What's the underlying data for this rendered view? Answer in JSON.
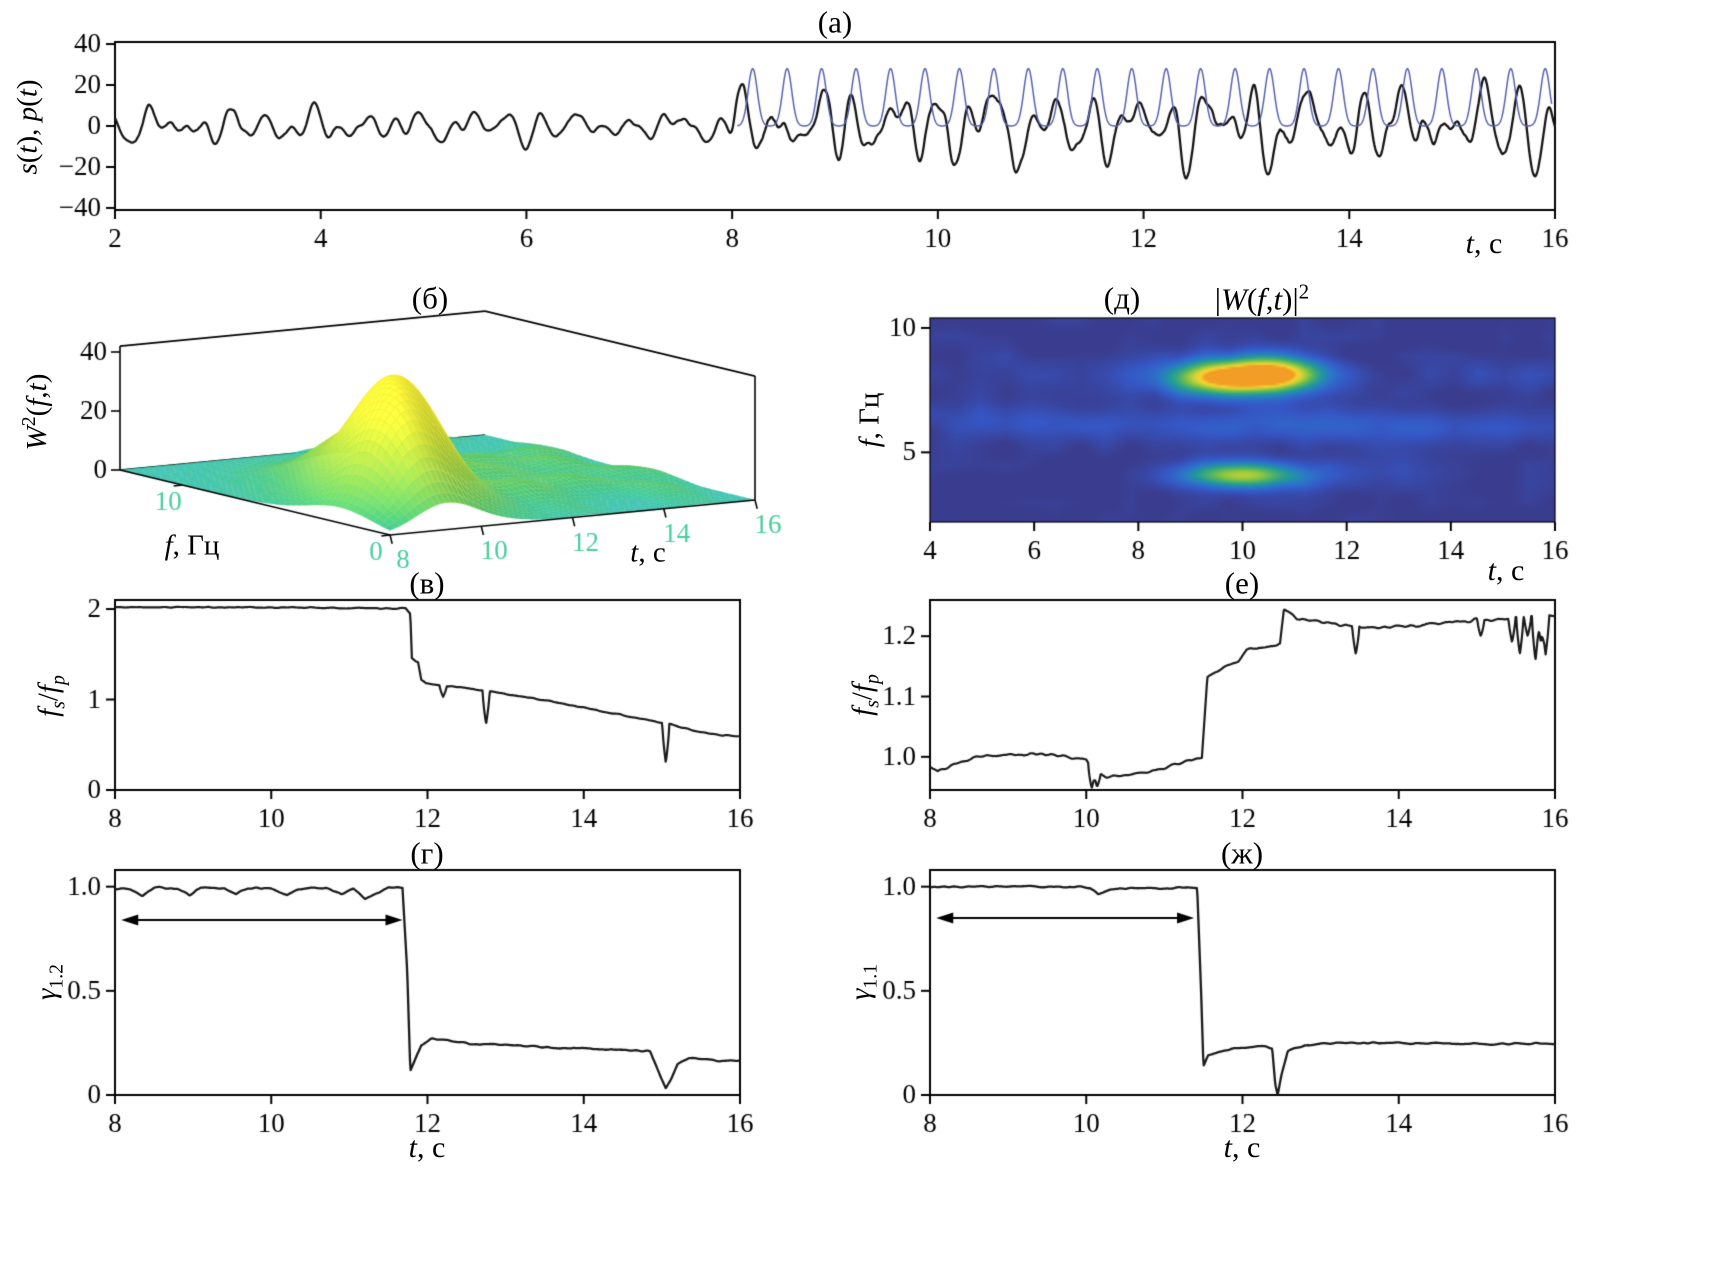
{
  "meta": {
    "background": "#ffffff",
    "axis_color": "#000000"
  },
  "chart_data": [
    {
      "id": "a",
      "type": "line",
      "title": "(а)",
      "ylabel_html": "<i>s</i>(<i>t</i>), <i>p</i>(<i>t</i>)",
      "xlabel_html": "<i>t</i>, с",
      "xlim": [
        2,
        16
      ],
      "ylim": [
        -41,
        41
      ],
      "xtick_vals": [
        2,
        4,
        6,
        8,
        10,
        12,
        14,
        16
      ],
      "xtick_labels": [
        "2",
        "4",
        "6",
        "8",
        "10",
        "12",
        "14",
        "16"
      ],
      "ytick_vals": [
        -40,
        -20,
        0,
        20,
        40
      ],
      "ytick_labels": [
        "−40",
        "−20",
        "0",
        "20",
        "40"
      ],
      "series": [
        {
          "name": "s(t)",
          "color": "#141414",
          "width": 2.3,
          "synth": {
            "kind": "mixed_oscillation",
            "seed": 7,
            "dt": 0.004,
            "segments": [
              {
                "t0": 2,
                "t1": 8,
                "amp": 8.5
              },
              {
                "t0": 8,
                "t1": 16,
                "amp": 22.5
              }
            ],
            "components": [
              {
                "f": 2.3,
                "a": 0.42,
                "pmf": 0.33,
                "pma": 1.6
              },
              {
                "f": 3.6,
                "a": 0.38,
                "pmf": 0.23,
                "pma": 1.3
              },
              {
                "f": 5.0,
                "a": 0.2,
                "pmf": 0.41,
                "pma": 1.0
              },
              {
                "f": 1.25,
                "a": 0.25,
                "pmf": 0.13,
                "pma": 0.8
              }
            ],
            "noise": 0.1
          }
        },
        {
          "name": "p(t)",
          "color": "#5761ad",
          "width": 1.5,
          "synth": {
            "kind": "pulse_train",
            "t_start": 8.05,
            "t_end": 15.97,
            "first_pulse": 8.2,
            "period": 0.335,
            "height": 28,
            "sigma": 0.045,
            "base": 0
          }
        }
      ]
    },
    {
      "id": "b",
      "type": "surface3d",
      "title": "(б)",
      "zlabel_html": "<i>W</i><sup>2</sup>(<i>f</i>,<i>t</i>)",
      "flabel_html": "<i>f</i>, Гц",
      "tlabel_html": "<i>t</i>, с",
      "tlim": [
        8,
        16
      ],
      "flim": [
        0,
        13
      ],
      "zmax": 42,
      "ttick_vals": [
        8,
        10,
        12,
        14,
        16
      ],
      "ttick_labels": [
        "8",
        "10",
        "12",
        "14",
        "16"
      ],
      "ftick_vals": [
        0,
        10
      ],
      "ftick_labels": [
        "0",
        "10"
      ],
      "ztick_vals": [
        0,
        20,
        40
      ],
      "ztick_labels": [
        "0",
        "20",
        "40"
      ],
      "bumps": [
        {
          "t": 9.2,
          "f": 2.3,
          "h": 27,
          "st": 0.65,
          "sf": 1.5
        },
        {
          "t": 10.1,
          "f": 4.3,
          "h": 38,
          "st": 0.75,
          "sf": 1.7
        },
        {
          "t": 10.9,
          "f": 7.6,
          "h": 16,
          "st": 0.8,
          "sf": 1.6
        },
        {
          "t": 11.8,
          "f": 8.6,
          "h": 7,
          "st": 0.6,
          "sf": 1.0
        },
        {
          "t": 12.4,
          "f": 3.4,
          "h": 6,
          "st": 0.5,
          "sf": 0.9
        },
        {
          "t": 12.9,
          "f": 6.2,
          "h": 5,
          "st": 0.55,
          "sf": 0.9
        },
        {
          "t": 13.6,
          "f": 8.2,
          "h": 5,
          "st": 0.5,
          "sf": 0.8
        },
        {
          "t": 13.9,
          "f": 4.0,
          "h": 4,
          "st": 0.5,
          "sf": 0.8
        },
        {
          "t": 14.6,
          "f": 6.6,
          "h": 4,
          "st": 0.5,
          "sf": 0.8
        },
        {
          "t": 15.2,
          "f": 8.8,
          "h": 4,
          "st": 0.45,
          "sf": 0.7
        },
        {
          "t": 15.4,
          "f": 5.0,
          "h": 3.5,
          "st": 0.45,
          "sf": 0.7
        },
        {
          "t": 12.1,
          "f": 10.6,
          "h": 4,
          "st": 0.5,
          "sf": 0.8
        },
        {
          "t": 14.9,
          "f": 2.6,
          "h": 3,
          "st": 0.4,
          "sf": 0.7
        }
      ],
      "ripple_amp": 1.1,
      "colormap": [
        [
          0,
          "#40c4c8"
        ],
        [
          0.15,
          "#3fc6a0"
        ],
        [
          0.3,
          "#4fc878"
        ],
        [
          0.5,
          "#7ed05b"
        ],
        [
          0.7,
          "#b4da46"
        ],
        [
          0.85,
          "#dde63c"
        ],
        [
          1,
          "#f6ee38"
        ]
      ]
    },
    {
      "id": "d",
      "type": "heatmap",
      "title": "(д)",
      "formula_html": "|<i>W</i>(<i>f</i>,<i>t</i>)|<sup>2</sup>",
      "ylabel_html": "<i>f</i>, Гц",
      "xlabel_html": "<i>t</i>, с",
      "xlim": [
        4,
        16
      ],
      "ylim": [
        2.2,
        10.4
      ],
      "xtick_vals": [
        4,
        6,
        8,
        10,
        12,
        14,
        16
      ],
      "xtick_labels": [
        "4",
        "6",
        "8",
        "10",
        "12",
        "14",
        "16"
      ],
      "ytick_vals": [
        5,
        10
      ],
      "ytick_labels": [
        "5",
        "10"
      ],
      "noise": 0.05,
      "seed": 21,
      "blobs": [
        {
          "t": 9.5,
          "f": 8.0,
          "a": 0.85,
          "st": 0.75,
          "sf": 0.5
        },
        {
          "t": 10.6,
          "f": 8.15,
          "a": 1.0,
          "st": 0.7,
          "sf": 0.5
        },
        {
          "t": 10.0,
          "f": 4.05,
          "a": 0.8,
          "st": 0.85,
          "sf": 0.38
        },
        {
          "t": 10.2,
          "f": 6.1,
          "a": 0.16,
          "st": 2.5,
          "sf": 0.5
        },
        {
          "t": 14.0,
          "f": 6.0,
          "a": 0.1,
          "st": 2.0,
          "sf": 0.5
        },
        {
          "t": 5.5,
          "f": 6.3,
          "a": 0.1,
          "st": 1.5,
          "sf": 0.5
        },
        {
          "t": 15.0,
          "f": 8.1,
          "a": 0.1,
          "st": 1.2,
          "sf": 0.5
        },
        {
          "t": 6.5,
          "f": 8.3,
          "a": 0.08,
          "st": 1.5,
          "sf": 0.6
        },
        {
          "t": 12.8,
          "f": 4.2,
          "a": 0.07,
          "st": 1.2,
          "sf": 0.5
        }
      ],
      "colormap": [
        [
          0,
          "#3a3d8f"
        ],
        [
          0.15,
          "#3557c6"
        ],
        [
          0.3,
          "#2b76c9"
        ],
        [
          0.45,
          "#21989c"
        ],
        [
          0.6,
          "#4cb268"
        ],
        [
          0.72,
          "#8cc63f"
        ],
        [
          0.84,
          "#d3d23a"
        ],
        [
          0.93,
          "#fbd32d"
        ],
        [
          1,
          "#f29e26"
        ]
      ]
    },
    {
      "id": "v",
      "type": "line",
      "title": "(в)",
      "ylabel_html": "<i>f</i><sub><i>s</i></sub>/<i>f</i><sub><i>p</i></sub>",
      "xlim": [
        8,
        16
      ],
      "ylim": [
        0,
        2.1
      ],
      "xtick_vals": [
        8,
        10,
        12,
        14,
        16
      ],
      "xtick_labels": [
        "8",
        "10",
        "12",
        "14",
        "16"
      ],
      "ytick_vals": [
        0,
        1,
        2
      ],
      "ytick_labels": [
        "0",
        "1",
        "2"
      ],
      "line_color": "#1a1a1a",
      "line_width": 2.2,
      "noise": 0.009,
      "seed": 11,
      "breakpoints": [
        [
          8,
          2.02
        ],
        [
          9.5,
          2.02
        ],
        [
          10.8,
          2.015
        ],
        [
          11.4,
          2.01
        ],
        [
          11.72,
          2.01
        ],
        [
          11.78,
          1.95
        ],
        [
          11.8,
          1.46
        ],
        [
          11.85,
          1.42
        ],
        [
          11.88,
          1.41
        ],
        [
          11.92,
          1.22
        ],
        [
          11.98,
          1.18
        ],
        [
          12.1,
          1.165
        ],
        [
          12.4,
          1.14
        ],
        [
          12.8,
          1.09
        ],
        [
          13.2,
          1.035
        ],
        [
          13.6,
          0.975
        ],
        [
          14,
          0.91
        ],
        [
          14.4,
          0.845
        ],
        [
          14.8,
          0.775
        ],
        [
          15.1,
          0.725
        ],
        [
          15.4,
          0.655
        ],
        [
          15.6,
          0.625
        ],
        [
          15.78,
          0.605
        ],
        [
          15.95,
          0.595
        ]
      ],
      "spikes": [
        [
          12.2,
          1.03
        ],
        [
          12.75,
          0.73
        ],
        [
          15.05,
          0.3
        ]
      ]
    },
    {
      "id": "e",
      "type": "line",
      "title": "(е)",
      "ylabel_html": "<i>f</i><sub><i>s</i></sub>/<i>f</i><sub><i>p</i></sub>",
      "xlim": [
        8,
        16
      ],
      "ylim": [
        0.945,
        1.26
      ],
      "xtick_vals": [
        8,
        10,
        12,
        14,
        16
      ],
      "xtick_labels": [
        "8",
        "10",
        "12",
        "14",
        "16"
      ],
      "ytick_vals": [
        1.0,
        1.1,
        1.2
      ],
      "ytick_labels": [
        "1.0",
        "1.1",
        "1.2"
      ],
      "line_color": "#1a1a1a",
      "line_width": 2.2,
      "noise": 0.0035,
      "seed": 12,
      "breakpoints": [
        [
          8,
          0.985
        ],
        [
          8.1,
          0.975
        ],
        [
          8.3,
          0.99
        ],
        [
          8.6,
          1.0
        ],
        [
          9.0,
          1.005
        ],
        [
          9.4,
          1.005
        ],
        [
          9.8,
          1.0
        ],
        [
          10.0,
          0.995
        ],
        [
          10.1,
          0.975
        ],
        [
          10.25,
          0.968
        ],
        [
          10.5,
          0.97
        ],
        [
          10.8,
          0.975
        ],
        [
          11.1,
          0.985
        ],
        [
          11.35,
          0.995
        ],
        [
          11.48,
          1.0
        ],
        [
          11.55,
          1.13
        ],
        [
          11.65,
          1.14
        ],
        [
          11.8,
          1.15
        ],
        [
          11.95,
          1.16
        ],
        [
          12.05,
          1.175
        ],
        [
          12.2,
          1.18
        ],
        [
          12.35,
          1.185
        ],
        [
          12.48,
          1.19
        ],
        [
          12.53,
          1.245
        ],
        [
          12.6,
          1.24
        ],
        [
          12.7,
          1.23
        ],
        [
          12.9,
          1.225
        ],
        [
          13.2,
          1.22
        ],
        [
          13.6,
          1.215
        ],
        [
          14.0,
          1.215
        ],
        [
          14.4,
          1.22
        ],
        [
          14.8,
          1.225
        ],
        [
          15.2,
          1.228
        ],
        [
          15.6,
          1.232
        ],
        [
          15.92,
          1.235
        ]
      ],
      "spikes": [
        [
          10.07,
          0.948
        ],
        [
          10.14,
          0.95
        ],
        [
          13.45,
          1.17
        ],
        [
          15.05,
          1.2
        ],
        [
          15.45,
          1.19
        ],
        [
          15.55,
          1.17
        ],
        [
          15.65,
          1.2
        ],
        [
          15.75,
          1.16
        ],
        [
          15.82,
          1.19
        ],
        [
          15.88,
          1.17
        ]
      ]
    },
    {
      "id": "g",
      "type": "line",
      "title": "(г)",
      "ylabel_html": "<i>γ</i><sub>1.2</sub>",
      "xlabel_html": "<i>t</i>, с",
      "xlim": [
        8,
        16
      ],
      "ylim": [
        0,
        1.08
      ],
      "xtick_vals": [
        8,
        10,
        12,
        14,
        16
      ],
      "xtick_labels": [
        "8",
        "10",
        "12",
        "14",
        "16"
      ],
      "ytick_vals": [
        0,
        0.5,
        1.0
      ],
      "ytick_labels": [
        "0",
        "0.5",
        "1.0"
      ],
      "line_color": "#1a1a1a",
      "line_width": 2.3,
      "noise": 0.008,
      "seed": 13,
      "breakpoints": [
        [
          8,
          0.995
        ],
        [
          8.2,
          0.99
        ],
        [
          8.35,
          0.96
        ],
        [
          8.5,
          0.995
        ],
        [
          8.8,
          0.99
        ],
        [
          8.95,
          0.96
        ],
        [
          9.1,
          0.995
        ],
        [
          9.4,
          0.99
        ],
        [
          9.55,
          0.965
        ],
        [
          9.7,
          0.995
        ],
        [
          10.0,
          0.99
        ],
        [
          10.2,
          0.96
        ],
        [
          10.35,
          0.99
        ],
        [
          10.7,
          0.995
        ],
        [
          10.9,
          0.965
        ],
        [
          11.05,
          0.99
        ],
        [
          11.2,
          0.94
        ],
        [
          11.35,
          0.97
        ],
        [
          11.5,
          0.995
        ],
        [
          11.68,
          0.995
        ],
        [
          11.74,
          0.6
        ],
        [
          11.78,
          0.12
        ],
        [
          11.84,
          0.17
        ],
        [
          11.92,
          0.24
        ],
        [
          12.05,
          0.27
        ],
        [
          12.3,
          0.26
        ],
        [
          12.6,
          0.245
        ],
        [
          13.0,
          0.24
        ],
        [
          13.4,
          0.23
        ],
        [
          13.8,
          0.225
        ],
        [
          14.2,
          0.22
        ],
        [
          14.6,
          0.215
        ],
        [
          14.85,
          0.21
        ],
        [
          14.95,
          0.12
        ],
        [
          15.05,
          0.03
        ],
        [
          15.12,
          0.08
        ],
        [
          15.2,
          0.15
        ],
        [
          15.35,
          0.175
        ],
        [
          15.6,
          0.17
        ],
        [
          15.9,
          0.165
        ]
      ],
      "spikes": [],
      "arrow": {
        "y": 0.84,
        "t1": 8.08,
        "t2": 11.68
      }
    },
    {
      "id": "zh",
      "type": "line",
      "title": "(ж)",
      "ylabel_html": "<i>γ</i><sub>1.1</sub>",
      "xlabel_html": "<i>t</i>, с",
      "xlim": [
        8,
        16
      ],
      "ylim": [
        0,
        1.08
      ],
      "xtick_vals": [
        8,
        10,
        12,
        14,
        16
      ],
      "xtick_labels": [
        "8",
        "10",
        "12",
        "14",
        "16"
      ],
      "ytick_vals": [
        0,
        0.5,
        1.0
      ],
      "ytick_labels": [
        "0",
        "0.5",
        "1.0"
      ],
      "line_color": "#1a1a1a",
      "line_width": 2.3,
      "noise": 0.005,
      "seed": 14,
      "breakpoints": [
        [
          8,
          1.0
        ],
        [
          9,
          1.0
        ],
        [
          9.8,
          1.0
        ],
        [
          10.05,
          0.995
        ],
        [
          10.15,
          0.963
        ],
        [
          10.3,
          0.985
        ],
        [
          10.6,
          0.995
        ],
        [
          11.0,
          0.99
        ],
        [
          11.3,
          0.995
        ],
        [
          11.42,
          0.995
        ],
        [
          11.47,
          0.5
        ],
        [
          11.5,
          0.14
        ],
        [
          11.56,
          0.19
        ],
        [
          11.7,
          0.21
        ],
        [
          11.9,
          0.225
        ],
        [
          12.1,
          0.23
        ],
        [
          12.3,
          0.235
        ],
        [
          12.38,
          0.225
        ],
        [
          12.42,
          0.05
        ],
        [
          12.45,
          0.0
        ],
        [
          12.5,
          0.1
        ],
        [
          12.58,
          0.21
        ],
        [
          12.8,
          0.24
        ],
        [
          13.2,
          0.25
        ],
        [
          14.0,
          0.25
        ],
        [
          15.0,
          0.245
        ],
        [
          15.9,
          0.245
        ]
      ],
      "spikes": [],
      "arrow": {
        "y": 0.85,
        "t1": 8.08,
        "t2": 11.38
      }
    }
  ]
}
